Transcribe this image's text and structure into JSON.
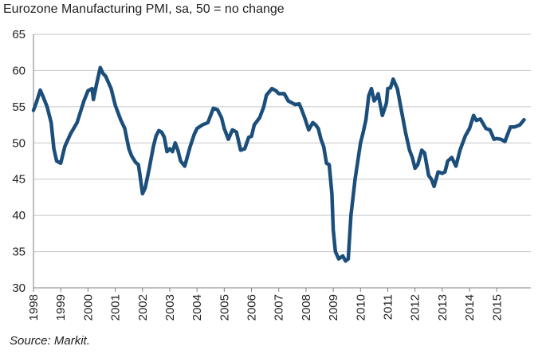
{
  "chart_data": {
    "type": "line",
    "title": "Eurozone Manufacturing PMI, sa, 50 = no change",
    "source": "Source: Markit.",
    "ylim": [
      30,
      65
    ],
    "yticks": [
      30,
      35,
      40,
      45,
      50,
      55,
      60,
      65
    ],
    "xlim": [
      1998.0,
      2016.25
    ],
    "xticks": [
      "1998",
      "1999",
      "2000",
      "2001",
      "2002",
      "2003",
      "2004",
      "2005",
      "2006",
      "2007",
      "2008",
      "2009",
      "2010",
      "2011",
      "2012",
      "2013",
      "2014",
      "2015"
    ],
    "grid": true,
    "colors": {
      "series": "#1b4e7a"
    },
    "series": [
      {
        "x": [
          1998.0,
          1998.1,
          1998.25,
          1998.35,
          1998.5,
          1998.65,
          1998.75,
          1998.85,
          1999.0,
          1999.15,
          1999.35,
          1999.6,
          1999.85,
          2000.0,
          2000.15,
          2000.2,
          2000.32,
          2000.45,
          2000.55,
          2000.65,
          2000.85,
          2001.0,
          2001.2,
          2001.35,
          2001.5,
          2001.6,
          2001.75,
          2001.85,
          2001.9,
          2002.0,
          2002.1,
          2002.25,
          2002.4,
          2002.5,
          2002.6,
          2002.7,
          2002.8,
          2002.9,
          2003.0,
          2003.1,
          2003.2,
          2003.3,
          2003.4,
          2003.55,
          2003.75,
          2003.9,
          2004.0,
          2004.2,
          2004.4,
          2004.6,
          2004.75,
          2004.9,
          2005.0,
          2005.15,
          2005.3,
          2005.45,
          2005.6,
          2005.75,
          2005.9,
          2006.0,
          2006.1,
          2006.3,
          2006.45,
          2006.55,
          2006.75,
          2006.9,
          2007.0,
          2007.2,
          2007.35,
          2007.45,
          2007.6,
          2007.75,
          2007.85,
          2007.95,
          2008.1,
          2008.25,
          2008.35,
          2008.45,
          2008.55,
          2008.65,
          2008.75,
          2008.85,
          2008.95,
          2009.0,
          2009.08,
          2009.2,
          2009.35,
          2009.45,
          2009.55,
          2009.65,
          2009.8,
          2010.0,
          2010.1,
          2010.2,
          2010.3,
          2010.4,
          2010.5,
          2010.6,
          2010.65,
          2010.8,
          2010.95,
          2011.0,
          2011.1,
          2011.2,
          2011.35,
          2011.5,
          2011.65,
          2011.8,
          2011.9,
          2012.0,
          2012.1,
          2012.25,
          2012.35,
          2012.5,
          2012.6,
          2012.7,
          2012.85,
          2013.0,
          2013.1,
          2013.2,
          2013.35,
          2013.5,
          2013.65,
          2013.85,
          2014.0,
          2014.15,
          2014.25,
          2014.4,
          2014.6,
          2014.75,
          2014.9,
          2015.0,
          2015.15,
          2015.3,
          2015.5,
          2015.65,
          2015.85,
          2016.0
        ],
        "y": [
          54.5,
          55.5,
          57.3,
          56.4,
          55.0,
          52.8,
          49.2,
          47.5,
          47.2,
          49.5,
          51.2,
          52.8,
          55.8,
          57.2,
          57.5,
          56.0,
          58.2,
          60.4,
          59.6,
          59.2,
          57.5,
          55.2,
          53.2,
          52.0,
          49.2,
          48.2,
          47.3,
          47.0,
          45.8,
          43.0,
          43.8,
          46.5,
          49.5,
          51.0,
          51.7,
          51.5,
          50.8,
          48.8,
          49.2,
          48.8,
          50.0,
          49.0,
          47.5,
          46.8,
          49.5,
          51.2,
          52.0,
          52.5,
          52.8,
          54.8,
          54.6,
          53.5,
          52.0,
          50.5,
          51.8,
          51.5,
          49.0,
          49.2,
          50.8,
          50.9,
          52.5,
          53.5,
          55.0,
          56.6,
          57.5,
          57.2,
          56.8,
          56.8,
          55.8,
          55.6,
          55.3,
          55.4,
          54.5,
          53.5,
          51.8,
          52.8,
          52.5,
          52.0,
          50.5,
          49.5,
          47.2,
          47.0,
          43.0,
          38.0,
          35.0,
          34.0,
          34.4,
          33.7,
          34.0,
          40.0,
          45.0,
          50.0,
          51.5,
          53.2,
          56.5,
          57.5,
          55.8,
          56.3,
          56.8,
          53.8,
          55.5,
          57.5,
          57.6,
          58.8,
          57.5,
          54.5,
          51.5,
          49.0,
          48.0,
          46.5,
          47.0,
          49.0,
          48.6,
          45.5,
          45.0,
          44.0,
          46.0,
          45.8,
          46.0,
          47.5,
          48.0,
          46.8,
          49.0,
          51.0,
          52.0,
          53.8,
          53.1,
          53.3,
          52.0,
          51.8,
          50.5,
          50.6,
          50.5,
          50.2,
          52.2,
          52.2,
          52.5,
          53.2
        ]
      }
    ]
  }
}
